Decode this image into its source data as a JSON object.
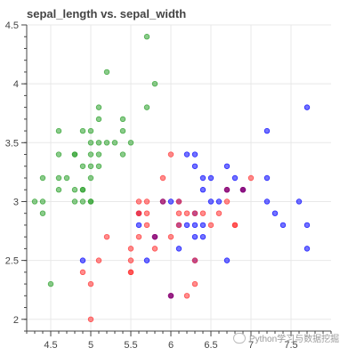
{
  "chart_data": {
    "type": "scatter",
    "title": "sepal_length vs. sepal_width",
    "xlabel": "",
    "ylabel": "",
    "xlim": [
      4.2,
      8.0
    ],
    "ylim": [
      1.9,
      4.5
    ],
    "grid": true,
    "x_ticks": [
      "4.5",
      "5",
      "5.5",
      "6",
      "6.5",
      "7",
      "7.5"
    ],
    "y_ticks": [
      "2",
      "2.5",
      "3",
      "3.5",
      "4",
      "4.5"
    ],
    "series": [
      {
        "color": "#2ca02c",
        "points": [
          [
            5.7,
            4.4
          ],
          [
            5.2,
            4.1
          ],
          [
            5.8,
            4.0
          ],
          [
            5.7,
            3.8
          ],
          [
            5.1,
            3.8
          ],
          [
            5.4,
            3.7
          ],
          [
            5.1,
            3.7
          ],
          [
            5.4,
            3.6
          ],
          [
            4.6,
            3.6
          ],
          [
            5.0,
            3.6
          ],
          [
            4.9,
            3.6
          ],
          [
            5.5,
            3.5
          ],
          [
            5.2,
            3.5
          ],
          [
            5.1,
            3.5
          ],
          [
            5.0,
            3.5
          ],
          [
            5.3,
            3.5
          ],
          [
            5.0,
            3.4
          ],
          [
            4.8,
            3.4
          ],
          [
            5.4,
            3.4
          ],
          [
            5.1,
            3.4
          ],
          [
            4.6,
            3.4
          ],
          [
            4.8,
            3.4
          ],
          [
            4.9,
            3.3
          ],
          [
            5.1,
            3.3
          ],
          [
            5.0,
            3.3
          ],
          [
            4.7,
            3.2
          ],
          [
            4.6,
            3.2
          ],
          [
            5.0,
            3.2
          ],
          [
            4.4,
            3.2
          ],
          [
            4.6,
            3.1
          ],
          [
            4.8,
            3.1
          ],
          [
            4.9,
            3.1
          ],
          [
            4.9,
            3.1
          ],
          [
            5.0,
            3.0
          ],
          [
            4.3,
            3.0
          ],
          [
            4.4,
            3.0
          ],
          [
            4.8,
            3.0
          ],
          [
            4.9,
            3.0
          ],
          [
            5.0,
            3.0
          ],
          [
            4.4,
            2.9
          ],
          [
            4.5,
            2.3
          ]
        ]
      },
      {
        "color": "#0000ff",
        "points": [
          [
            7.2,
            3.6
          ],
          [
            7.7,
            3.8
          ],
          [
            6.7,
            3.3
          ],
          [
            6.3,
            3.3
          ],
          [
            6.4,
            3.2
          ],
          [
            6.9,
            3.1
          ],
          [
            6.7,
            3.1
          ],
          [
            6.5,
            3.2
          ],
          [
            6.8,
            3.2
          ],
          [
            6.3,
            3.4
          ],
          [
            6.2,
            3.4
          ],
          [
            6.4,
            3.1
          ],
          [
            7.2,
            3.0
          ],
          [
            6.1,
            3.0
          ],
          [
            7.6,
            3.0
          ],
          [
            6.5,
            3.0
          ],
          [
            6.0,
            3.0
          ],
          [
            7.3,
            2.9
          ],
          [
            6.3,
            2.9
          ],
          [
            6.9,
            3.1
          ],
          [
            6.4,
            2.8
          ],
          [
            7.4,
            2.8
          ],
          [
            7.7,
            2.8
          ],
          [
            6.2,
            2.8
          ],
          [
            6.4,
            2.7
          ],
          [
            6.3,
            2.7
          ],
          [
            5.8,
            2.7
          ],
          [
            6.1,
            2.6
          ],
          [
            7.7,
            2.6
          ],
          [
            6.3,
            2.5
          ],
          [
            6.7,
            2.5
          ],
          [
            4.9,
            2.5
          ],
          [
            5.7,
            2.5
          ],
          [
            7.2,
            3.2
          ],
          [
            5.6,
            2.8
          ],
          [
            5.6,
            2.9
          ],
          [
            6.1,
            2.8
          ],
          [
            6.0,
            2.2
          ],
          [
            6.3,
            2.8
          ],
          [
            6.6,
            3.0
          ]
        ]
      },
      {
        "color": "#ff3030",
        "points": [
          [
            7.0,
            3.2
          ],
          [
            6.9,
            3.1
          ],
          [
            6.0,
            3.4
          ],
          [
            5.9,
            3.2
          ],
          [
            5.6,
            3.0
          ],
          [
            6.7,
            3.0
          ],
          [
            5.7,
            3.0
          ],
          [
            5.6,
            2.9
          ],
          [
            6.1,
            2.9
          ],
          [
            6.2,
            2.9
          ],
          [
            6.6,
            2.9
          ],
          [
            6.4,
            2.9
          ],
          [
            6.1,
            2.8
          ],
          [
            6.8,
            2.8
          ],
          [
            5.7,
            2.8
          ],
          [
            5.6,
            2.7
          ],
          [
            5.8,
            2.7
          ],
          [
            6.0,
            2.7
          ],
          [
            5.2,
            2.7
          ],
          [
            5.8,
            2.6
          ],
          [
            5.5,
            2.6
          ],
          [
            6.3,
            2.5
          ],
          [
            5.5,
            2.5
          ],
          [
            5.1,
            2.5
          ],
          [
            5.5,
            2.4
          ],
          [
            5.5,
            2.4
          ],
          [
            4.9,
            2.4
          ],
          [
            5.0,
            2.3
          ],
          [
            6.3,
            2.3
          ],
          [
            6.2,
            2.2
          ],
          [
            6.0,
            2.2
          ],
          [
            5.0,
            2.0
          ],
          [
            5.6,
            2.9
          ],
          [
            6.5,
            2.8
          ],
          [
            6.1,
            3.0
          ],
          [
            5.7,
            2.9
          ],
          [
            6.3,
            2.9
          ],
          [
            6.7,
            3.1
          ],
          [
            6.8,
            2.8
          ],
          [
            5.9,
            3.0
          ]
        ]
      },
      {
        "color": "#7a0080",
        "points": [
          [
            5.8,
            2.7
          ],
          [
            6.7,
            3.1
          ],
          [
            6.9,
            3.1
          ],
          [
            5.9,
            3.0
          ],
          [
            6.0,
            2.2
          ]
        ]
      }
    ]
  },
  "watermark": {
    "icon": "wechat-icon",
    "text": "Python学习与数据挖掘"
  }
}
